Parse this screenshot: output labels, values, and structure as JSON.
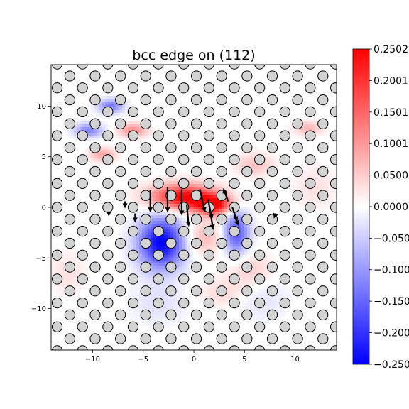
{
  "chart_data": {
    "type": "heatmap",
    "title": "bcc edge on (112)",
    "xlim": [
      -14.1,
      14.1
    ],
    "ylim": [
      -14.1,
      14.1
    ],
    "x_ticks": [
      -10,
      -5,
      0,
      5,
      10
    ],
    "y_ticks": [
      -10,
      -5,
      0,
      5,
      10
    ],
    "x_tick_labels": [
      "−10",
      "−5",
      "0",
      "5",
      "10"
    ],
    "y_tick_labels": [
      "−10",
      "−5",
      "0",
      "5",
      "10"
    ],
    "colormap": "bwr",
    "colorbar": {
      "range": [
        -0.2502,
        0.2502
      ],
      "ticks": [
        0.2502,
        0.2001,
        0.1501,
        0.1001,
        0.05,
        0.0,
        -0.05,
        -0.1,
        -0.15,
        -0.2,
        -0.2502
      ],
      "tick_labels": [
        "0.2502",
        "0.2001",
        "0.1501",
        "0.1001",
        "0.0500",
        "0.0000",
        "−0.0500",
        "−0.1000",
        "−0.1500",
        "−0.2000",
        "−0.2502"
      ]
    },
    "atom_lattice": {
      "row_spacing": 1.18,
      "atom_spacing": 2.5,
      "row_offset": 1.25,
      "atom_radius": 0.5,
      "face_color": "#d3d3d3",
      "edge_color": "#000000"
    },
    "field_blobs": [
      {
        "x": -1.0,
        "y": 1.0,
        "sx": 2.3,
        "sy": 0.9,
        "value": 0.25
      },
      {
        "x": 2.0,
        "y": 0.2,
        "sx": 1.3,
        "sy": 0.7,
        "value": 0.22
      },
      {
        "x": -3.2,
        "y": -3.5,
        "sx": 1.6,
        "sy": 1.8,
        "value": -0.25
      },
      {
        "x": 4.2,
        "y": -2.5,
        "sx": 0.9,
        "sy": 1.6,
        "value": -0.17
      },
      {
        "x": -8.2,
        "y": 10.0,
        "sx": 0.9,
        "sy": 0.5,
        "value": -0.13
      },
      {
        "x": -10.4,
        "y": 7.6,
        "sx": 1.0,
        "sy": 0.5,
        "value": -0.12
      },
      {
        "x": -6.0,
        "y": 7.6,
        "sx": 1.0,
        "sy": 0.5,
        "value": 0.11
      },
      {
        "x": -9.0,
        "y": 5.2,
        "sx": 0.9,
        "sy": 0.5,
        "value": 0.09
      },
      {
        "x": 11.3,
        "y": 7.8,
        "sx": 1.0,
        "sy": 0.5,
        "value": 0.07
      },
      {
        "x": 6.0,
        "y": 4.2,
        "sx": 1.3,
        "sy": 0.8,
        "value": 0.06
      },
      {
        "x": 1.0,
        "y": -3.0,
        "sx": 1.4,
        "sy": 1.2,
        "value": 0.07
      },
      {
        "x": 5.5,
        "y": -6.2,
        "sx": 1.6,
        "sy": 1.2,
        "value": 0.05
      },
      {
        "x": 3.0,
        "y": -8.5,
        "sx": 1.8,
        "sy": 1.0,
        "value": 0.04
      },
      {
        "x": -12.5,
        "y": -6.5,
        "sx": 1.2,
        "sy": 1.5,
        "value": 0.03
      },
      {
        "x": -3.5,
        "y": -9.5,
        "sx": 2.0,
        "sy": 1.5,
        "value": -0.03
      },
      {
        "x": 6.5,
        "y": -9.0,
        "sx": 2.0,
        "sy": 1.5,
        "value": -0.03
      },
      {
        "x": 12.0,
        "y": 2.0,
        "sx": 1.5,
        "sy": 1.5,
        "value": 0.03
      }
    ],
    "arrows": [
      {
        "x": -4.3,
        "y": 1.7,
        "dx": 0.0,
        "dy": -2.2
      },
      {
        "x": -2.6,
        "y": 2.0,
        "dx": 0.0,
        "dy": -2.5
      },
      {
        "x": -1.2,
        "y": 1.8,
        "dx": 0.0,
        "dy": -2.6
      },
      {
        "x": -0.7,
        "y": 0.3,
        "dx": 0.2,
        "dy": -2.2
      },
      {
        "x": 0.6,
        "y": 1.8,
        "dx": 0.5,
        "dy": -2.3
      },
      {
        "x": 1.4,
        "y": 0.8,
        "dx": 0.4,
        "dy": -2.0
      },
      {
        "x": 1.6,
        "y": -0.2,
        "dx": 0.3,
        "dy": -2.0
      },
      {
        "x": 3.4,
        "y": 0.6,
        "dx": -0.5,
        "dy": 1.3
      },
      {
        "x": 3.8,
        "y": 0.0,
        "dx": 0.5,
        "dy": -1.4
      },
      {
        "x": 4.0,
        "y": -0.8,
        "dx": 0.4,
        "dy": -1.0
      },
      {
        "x": -5.8,
        "y": -0.6,
        "dx": 0.0,
        "dy": -0.9
      },
      {
        "x": -6.8,
        "y": 0.6,
        "dx": 0.0,
        "dy": -0.7
      },
      {
        "x": 8.1,
        "y": -0.6,
        "dx": -0.2,
        "dy": -0.5
      },
      {
        "x": -8.4,
        "y": -0.4,
        "dx": 0.0,
        "dy": -0.5
      }
    ]
  }
}
